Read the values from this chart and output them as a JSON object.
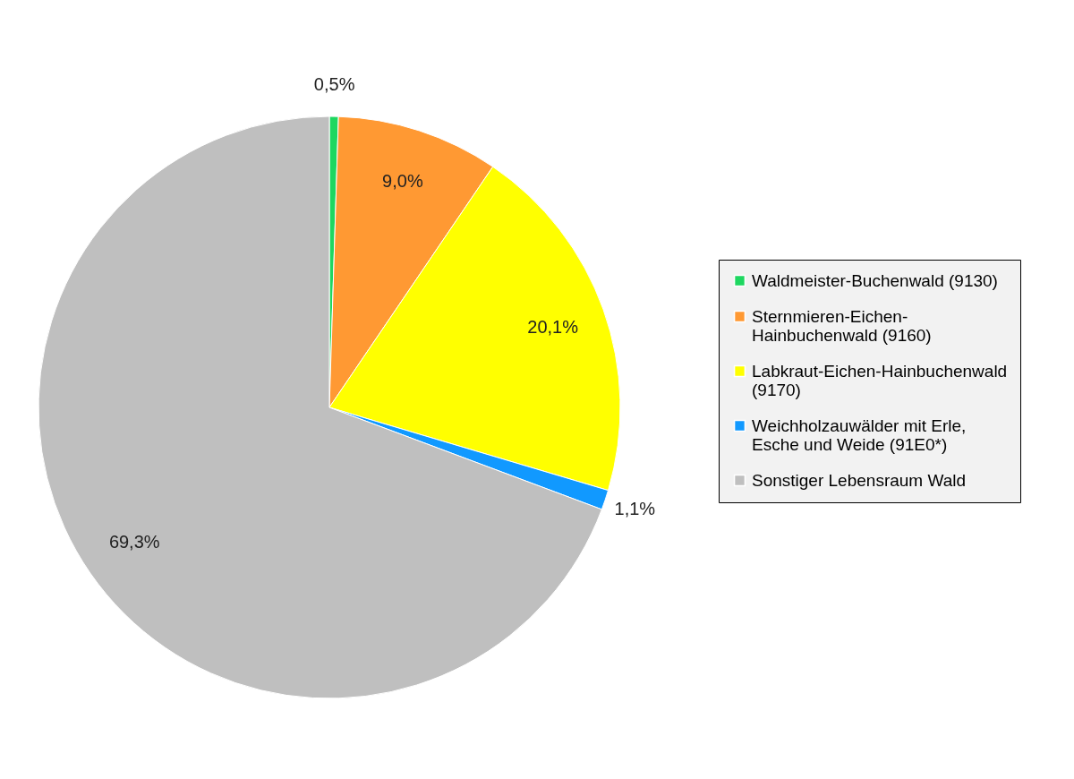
{
  "chart_data": {
    "type": "pie",
    "categories": [
      "Waldmeister-Buchenwald (9130)",
      "Sternmieren-Eichen-Hainbuchenwald (9160)",
      "Labkraut-Eichen-Hainbuchenwald (9170)",
      "Weichholzauwälder mit Erle, Esche und Weide (91E0*)",
      "Sonstiger Lebensraum Wald"
    ],
    "values": [
      0.5,
      9.0,
      20.1,
      1.1,
      69.3
    ],
    "value_labels": [
      "0,5%",
      "9,0%",
      "20,1%",
      "1,1%",
      "69,3%"
    ],
    "colors": [
      "#1ed760",
      "#ff9933",
      "#ffff00",
      "#1199ff",
      "#bfbfbf"
    ],
    "legend": "right"
  }
}
